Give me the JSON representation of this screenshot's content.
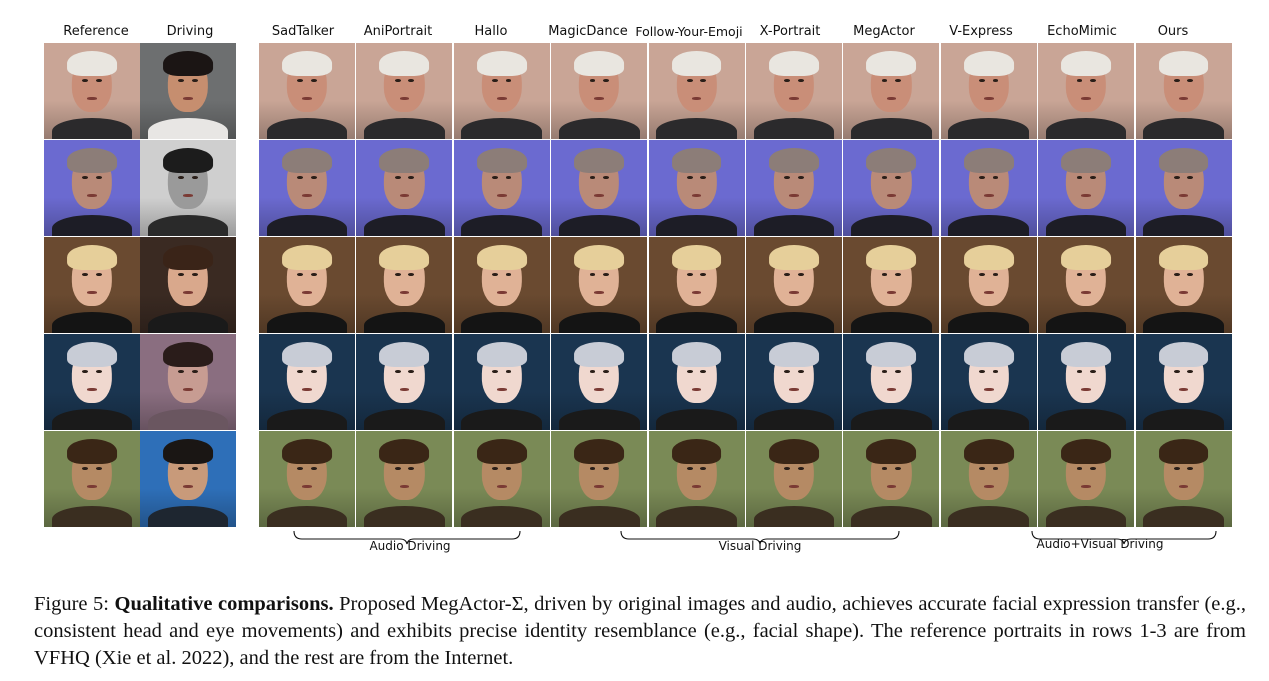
{
  "figure": {
    "column_labels_left": [
      "Reference",
      "Driving"
    ],
    "column_labels_right": [
      "SadTalker",
      "AniPortrait",
      "Hallo",
      "MagicDance",
      "Follow-Your-Emoji",
      "X-Portrait",
      "MegActor",
      "V-Express",
      "EchoMimic",
      "Ours"
    ],
    "groups": [
      {
        "label": "Audio Driving"
      },
      {
        "label": "Visual Driving"
      },
      {
        "label": "Audio+Visual Driving"
      }
    ],
    "rows": [
      {
        "ref_bg": "#c9a596",
        "skin": "#c98e78",
        "hair": "#e9e6e0",
        "cloth": "#2b2a2c",
        "drv_bg": "#6d6f70",
        "drv_skin": "#c68e6f",
        "drv_hair": "#1b1514",
        "drv_cloth": "#e8e6e4"
      },
      {
        "ref_bg": "#6b6ad0",
        "skin": "#b98a78",
        "hair": "#8c7d78",
        "cloth": "#1d1d26",
        "drv_bg": "#cfcfcf",
        "drv_skin": "#9a9a9a",
        "drv_hair": "#1c1c1c",
        "drv_cloth": "#2a2a2a"
      },
      {
        "ref_bg": "#6a4a30",
        "skin": "#e0b296",
        "hair": "#e6cf9a",
        "cloth": "#141414",
        "drv_bg": "#3a2a22",
        "drv_skin": "#d9a88c",
        "drv_hair": "#3a2418",
        "drv_cloth": "#1a1a1a"
      },
      {
        "ref_bg": "#1a3550",
        "skin": "#f0d8cf",
        "hair": "#c8ccd6",
        "cloth": "#1a1a1a",
        "drv_bg": "#8a6e80",
        "drv_skin": "#c79c92",
        "drv_hair": "#2a1c1a",
        "drv_cloth": "#6a5660"
      },
      {
        "ref_bg": "#7a8a56",
        "skin": "#b58a64",
        "hair": "#3a2616",
        "cloth": "#3a2e20",
        "drv_bg": "#2e6fb8",
        "drv_skin": "#c89a7a",
        "drv_hair": "#1a1614",
        "drv_cloth": "#1e2630"
      }
    ]
  },
  "caption": {
    "prefix": "Figure 5: ",
    "bold": "Qualitative comparisons.",
    "text": " Proposed MegActor-Σ, driven by original images and audio, achieves accurate facial expression transfer (e.g., consistent head and eye movements) and exhibits precise identity resemblance (e.g., facial shape). The reference portraits in rows 1-3 are from VFHQ (Xie et al. 2022), and the rest are from the Internet."
  }
}
